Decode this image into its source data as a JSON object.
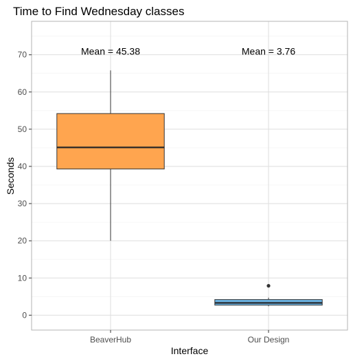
{
  "chart_data": {
    "type": "box",
    "title": "Time to Find Wednesday classes",
    "xlabel": "Interface",
    "ylabel": "Seconds",
    "categories": [
      "BeaverHub",
      "Our Design"
    ],
    "ylim": [
      -4,
      79
    ],
    "yticks": [
      0,
      10,
      20,
      30,
      40,
      50,
      60,
      70
    ],
    "grid": true,
    "boxes": [
      {
        "category": "BeaverHub",
        "whisker_low": 20,
        "q1": 39.3,
        "median": 45.1,
        "q3": 54.2,
        "whisker_high": 65.8,
        "outliers": [],
        "color": "#FFA54F"
      },
      {
        "category": "Our Design",
        "whisker_low": 2.4,
        "q1": 2.7,
        "median": 3.3,
        "q3": 4.2,
        "whisker_high": 4.7,
        "outliers": [
          7.9
        ],
        "color": "#6CB4E4"
      }
    ],
    "annotations": [
      {
        "category": "BeaverHub",
        "y": 71,
        "text": "Mean = 45.38"
      },
      {
        "category": "Our Design",
        "y": 71,
        "text": "Mean = 3.76"
      }
    ]
  }
}
